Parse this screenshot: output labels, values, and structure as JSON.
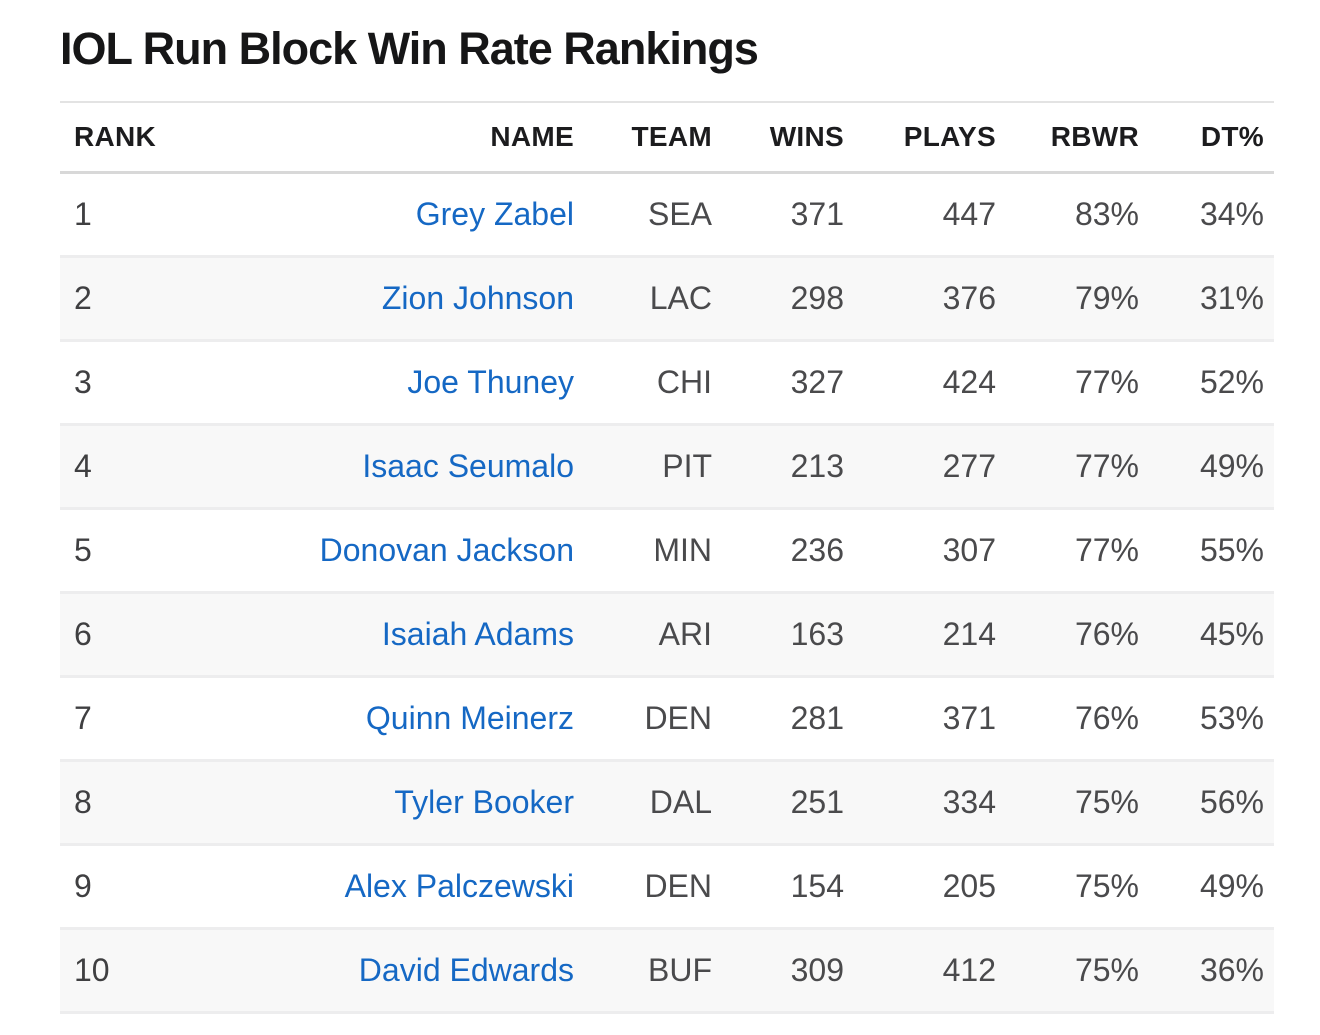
{
  "page": {
    "title": "IOL Run Block Win Rate Rankings"
  },
  "colors": {
    "link_blue": "#1568c4",
    "header_text": "#1c1c1e",
    "body_text": "#4a4a4c",
    "alt_row_bg": "#f8f8f8",
    "divider": "#d8d8d8"
  },
  "table": {
    "columns": [
      {
        "key": "rank",
        "label": "RANK"
      },
      {
        "key": "name",
        "label": "NAME"
      },
      {
        "key": "team",
        "label": "TEAM"
      },
      {
        "key": "wins",
        "label": "WINS"
      },
      {
        "key": "plays",
        "label": "PLAYS"
      },
      {
        "key": "rbwr",
        "label": "RBWR"
      },
      {
        "key": "dt",
        "label": "DT%"
      }
    ],
    "rows": [
      {
        "rank": "1",
        "name": "Grey Zabel",
        "team": "SEA",
        "wins": "371",
        "plays": "447",
        "rbwr": "83%",
        "dt": "34%"
      },
      {
        "rank": "2",
        "name": "Zion Johnson",
        "team": "LAC",
        "wins": "298",
        "plays": "376",
        "rbwr": "79%",
        "dt": "31%"
      },
      {
        "rank": "3",
        "name": "Joe Thuney",
        "team": "CHI",
        "wins": "327",
        "plays": "424",
        "rbwr": "77%",
        "dt": "52%"
      },
      {
        "rank": "4",
        "name": "Isaac Seumalo",
        "team": "PIT",
        "wins": "213",
        "plays": "277",
        "rbwr": "77%",
        "dt": "49%"
      },
      {
        "rank": "5",
        "name": "Donovan Jackson",
        "team": "MIN",
        "wins": "236",
        "plays": "307",
        "rbwr": "77%",
        "dt": "55%"
      },
      {
        "rank": "6",
        "name": "Isaiah Adams",
        "team": "ARI",
        "wins": "163",
        "plays": "214",
        "rbwr": "76%",
        "dt": "45%"
      },
      {
        "rank": "7",
        "name": "Quinn Meinerz",
        "team": "DEN",
        "wins": "281",
        "plays": "371",
        "rbwr": "76%",
        "dt": "53%"
      },
      {
        "rank": "8",
        "name": "Tyler Booker",
        "team": "DAL",
        "wins": "251",
        "plays": "334",
        "rbwr": "75%",
        "dt": "56%"
      },
      {
        "rank": "9",
        "name": "Alex Palczewski",
        "team": "DEN",
        "wins": "154",
        "plays": "205",
        "rbwr": "75%",
        "dt": "49%"
      },
      {
        "rank": "10",
        "name": "David Edwards",
        "team": "BUF",
        "wins": "309",
        "plays": "412",
        "rbwr": "75%",
        "dt": "36%"
      }
    ]
  },
  "chart_data": {
    "type": "table",
    "title": "IOL Run Block Win Rate Rankings",
    "columns": [
      "RANK",
      "NAME",
      "TEAM",
      "WINS",
      "PLAYS",
      "RBWR",
      "DT%"
    ],
    "rows": [
      [
        1,
        "Grey Zabel",
        "SEA",
        371,
        447,
        "83%",
        "34%"
      ],
      [
        2,
        "Zion Johnson",
        "LAC",
        298,
        376,
        "79%",
        "31%"
      ],
      [
        3,
        "Joe Thuney",
        "CHI",
        327,
        424,
        "77%",
        "52%"
      ],
      [
        4,
        "Isaac Seumalo",
        "PIT",
        213,
        277,
        "77%",
        "49%"
      ],
      [
        5,
        "Donovan Jackson",
        "MIN",
        236,
        307,
        "77%",
        "55%"
      ],
      [
        6,
        "Isaiah Adams",
        "ARI",
        163,
        214,
        "76%",
        "45%"
      ],
      [
        7,
        "Quinn Meinerz",
        "DEN",
        281,
        371,
        "76%",
        "53%"
      ],
      [
        8,
        "Tyler Booker",
        "DAL",
        251,
        334,
        "75%",
        "56%"
      ],
      [
        9,
        "Alex Palczewski",
        "DEN",
        154,
        205,
        "75%",
        "49%"
      ],
      [
        10,
        "David Edwards",
        "BUF",
        309,
        412,
        "75%",
        "36%"
      ]
    ]
  }
}
